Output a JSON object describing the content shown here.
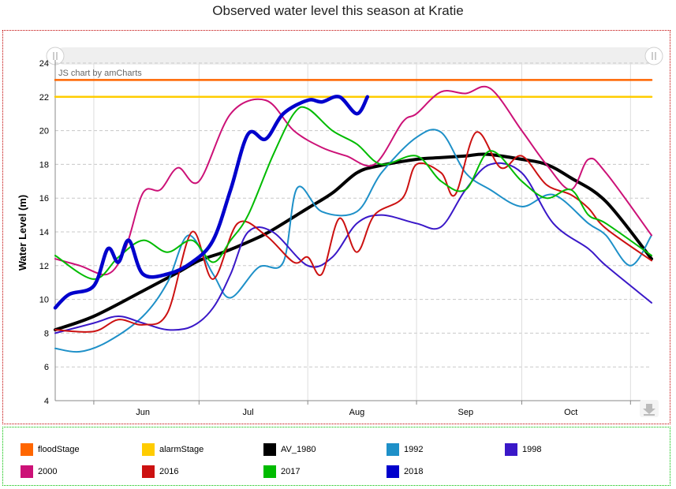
{
  "chart_data": {
    "type": "line",
    "title": "Observed water level this season at Kratie",
    "ylabel": "Water Level (m)",
    "ylim": [
      4,
      24
    ],
    "y_ticks": [
      4,
      6,
      8,
      10,
      12,
      14,
      16,
      18,
      20,
      22,
      24
    ],
    "x_domain": [
      "May 21",
      "Nov 7"
    ],
    "x_month_labels": [
      {
        "label": "Jun",
        "x": "Jun 15"
      },
      {
        "label": "Jul",
        "x": "Jul 15"
      },
      {
        "label": "Aug",
        "x": "Aug 15"
      },
      {
        "label": "Sep",
        "x": "Sep 15"
      },
      {
        "label": "Oct",
        "x": "Oct 15"
      }
    ],
    "credit": "JS chart by amCharts",
    "grid": true,
    "legend_position": "bottom",
    "series": [
      {
        "name": "floodStage",
        "color": "#FF6600",
        "width": 2.5,
        "x": [
          "May 21",
          "Nov 7"
        ],
        "y": [
          23,
          23
        ]
      },
      {
        "name": "alarmStage",
        "color": "#FFCC00",
        "width": 2.5,
        "x": [
          "May 21",
          "Nov 7"
        ],
        "y": [
          22,
          22
        ]
      },
      {
        "name": "AV_1980",
        "color": "#000000",
        "width": 4,
        "x": [
          "May 21",
          "Jun 1",
          "Jun 15",
          "Jun 25",
          "Jul 1",
          "Jul 8",
          "Jul 15",
          "Jul 21",
          "Aug 1",
          "Aug 8",
          "Aug 15",
          "Aug 21",
          "Sep 1",
          "Sep 8",
          "Sep 15",
          "Sep 21",
          "Oct 1",
          "Oct 8",
          "Oct 15",
          "Oct 25",
          "Nov 7"
        ],
        "y": [
          8.2,
          9.0,
          10.5,
          11.6,
          12.3,
          12.8,
          13.4,
          14.0,
          15.4,
          16.3,
          17.5,
          17.9,
          18.3,
          18.4,
          18.5,
          18.6,
          18.3,
          18.0,
          17.2,
          15.8,
          12.4
        ]
      },
      {
        "name": "1992",
        "color": "#1E90C8",
        "width": 2,
        "x": [
          "May 21",
          "May 28",
          "Jun 5",
          "Jun 15",
          "Jun 22",
          "Jun 28",
          "Jul 5",
          "Jul 10",
          "Jul 18",
          "Jul 25",
          "Jul 29",
          "Aug 5",
          "Aug 15",
          "Aug 22",
          "Sep 1",
          "Sep 8",
          "Sep 15",
          "Sep 22",
          "Oct 1",
          "Oct 10",
          "Oct 20",
          "Oct 25",
          "Nov 1",
          "Nov 7"
        ],
        "y": [
          7.1,
          6.9,
          7.5,
          9.0,
          11.0,
          13.8,
          11.5,
          10.1,
          11.9,
          12.2,
          16.6,
          15.2,
          15.2,
          17.5,
          19.6,
          19.9,
          17.5,
          16.5,
          15.5,
          16.2,
          14.5,
          13.8,
          12.0,
          13.8
        ]
      },
      {
        "name": "1998",
        "color": "#3A18C8",
        "width": 2,
        "x": [
          "May 21",
          "Jun 1",
          "Jun 8",
          "Jun 15",
          "Jun 22",
          "Jun 29",
          "Jul 5",
          "Jul 10",
          "Jul 15",
          "Jul 22",
          "Aug 1",
          "Aug 8",
          "Aug 15",
          "Aug 22",
          "Sep 1",
          "Sep 8",
          "Sep 15",
          "Sep 22",
          "Oct 1",
          "Oct 10",
          "Oct 20",
          "Oct 25",
          "Nov 7"
        ],
        "y": [
          8.0,
          8.6,
          9.0,
          8.6,
          8.2,
          8.4,
          9.5,
          11.5,
          14.0,
          14.0,
          12.0,
          12.5,
          14.5,
          15.0,
          14.5,
          14.3,
          16.5,
          18.0,
          17.5,
          14.5,
          13.0,
          12.0,
          9.8
        ]
      },
      {
        "name": "2000",
        "color": "#CC1177",
        "width": 2,
        "x": [
          "May 21",
          "May 28",
          "Jun 5",
          "Jun 10",
          "Jun 15",
          "Jun 20",
          "Jun 25",
          "Jul 1",
          "Jul 10",
          "Jul 20",
          "Jul 28",
          "Aug 5",
          "Aug 12",
          "Aug 20",
          "Aug 28",
          "Sep 1",
          "Sep 8",
          "Sep 15",
          "Sep 22",
          "Oct 1",
          "Oct 8",
          "Oct 15",
          "Oct 20",
          "Oct 25",
          "Nov 7"
        ],
        "y": [
          12.4,
          12.0,
          11.5,
          13.0,
          16.3,
          16.5,
          17.8,
          17.0,
          21.0,
          21.8,
          20.0,
          19.0,
          18.5,
          18.0,
          20.5,
          21.0,
          22.3,
          22.2,
          22.5,
          20.0,
          18.0,
          16.5,
          18.3,
          17.5,
          13.8
        ]
      },
      {
        "name": "2016",
        "color": "#CC1111",
        "width": 2,
        "x": [
          "May 21",
          "Jun 1",
          "Jun 8",
          "Jun 15",
          "Jun 22",
          "Jun 29",
          "Jul 5",
          "Jul 12",
          "Jul 20",
          "Jul 28",
          "Aug 1",
          "Aug 5",
          "Aug 10",
          "Aug 15",
          "Aug 20",
          "Aug 28",
          "Sep 1",
          "Sep 8",
          "Sep 12",
          "Sep 18",
          "Sep 25",
          "Oct 1",
          "Oct 8",
          "Oct 15",
          "Oct 20",
          "Oct 25",
          "Nov 7"
        ],
        "y": [
          8.2,
          8.1,
          8.8,
          8.5,
          9.2,
          14.0,
          11.2,
          14.5,
          13.8,
          12.2,
          12.5,
          11.5,
          14.8,
          12.8,
          15.0,
          16.0,
          18.0,
          17.5,
          16.2,
          19.9,
          17.8,
          18.5,
          16.8,
          16.2,
          15.4,
          14.2,
          12.3
        ]
      },
      {
        "name": "2017",
        "color": "#00BB00",
        "width": 2,
        "x": [
          "May 21",
          "Jun 1",
          "Jun 8",
          "Jun 15",
          "Jun 22",
          "Jun 29",
          "Jul 5",
          "Jul 10",
          "Jul 15",
          "Jul 22",
          "Jul 28",
          "Aug 1",
          "Aug 8",
          "Aug 15",
          "Aug 22",
          "Sep 1",
          "Sep 8",
          "Sep 15",
          "Sep 22",
          "Oct 1",
          "Oct 8",
          "Oct 15",
          "Oct 20",
          "Oct 25",
          "Nov 7"
        ],
        "y": [
          12.6,
          11.2,
          12.5,
          13.5,
          12.8,
          13.5,
          12.2,
          13.5,
          15.0,
          18.5,
          21.0,
          21.3,
          20.0,
          19.2,
          18.0,
          18.5,
          17.0,
          16.5,
          18.8,
          17.0,
          16.0,
          16.5,
          15.0,
          14.5,
          12.6
        ]
      },
      {
        "name": "2018",
        "color": "#0000CC",
        "width": 4.5,
        "x": [
          "May 21",
          "May 25",
          "Jun 1",
          "Jun 5",
          "Jun 8",
          "Jun 11",
          "Jun 15",
          "Jun 22",
          "Jun 29",
          "Jul 5",
          "Jul 10",
          "Jul 15",
          "Jul 20",
          "Jul 25",
          "Aug 1",
          "Aug 5",
          "Aug 10",
          "Aug 15",
          "Aug 18"
        ],
        "y": [
          9.5,
          10.3,
          10.8,
          13.0,
          12.2,
          13.5,
          11.5,
          11.5,
          12.2,
          13.5,
          16.5,
          19.8,
          19.5,
          21.0,
          21.8,
          21.7,
          22.0,
          21.0,
          22.0
        ]
      }
    ]
  }
}
